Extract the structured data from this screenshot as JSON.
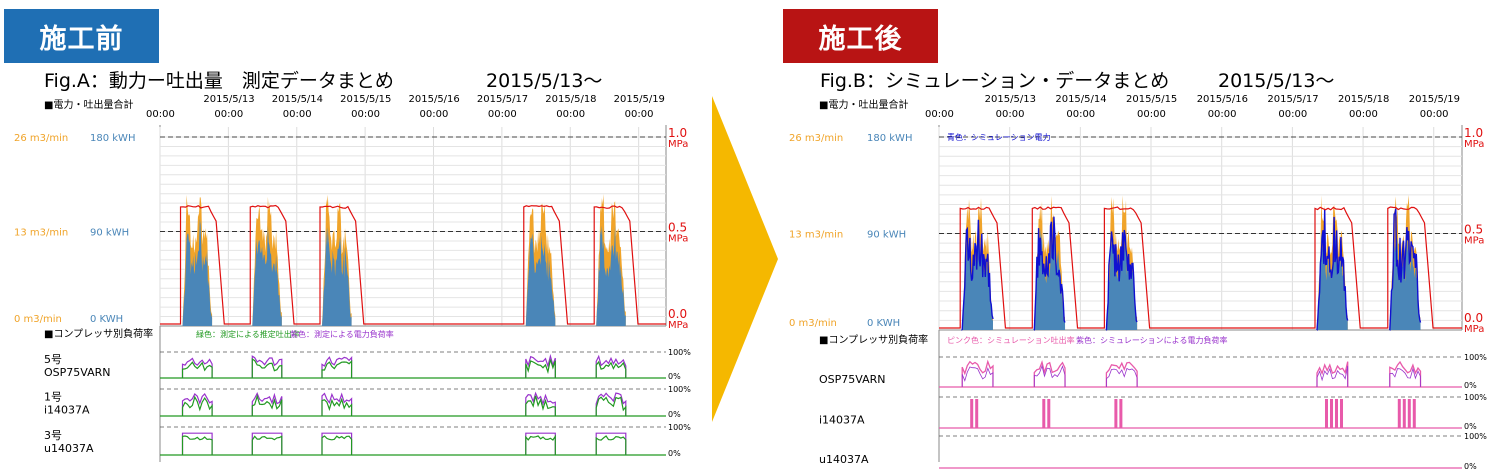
{
  "badges": {
    "before": "施工前",
    "after": "施工後"
  },
  "colors": {
    "badge_before": "#1f6fb4",
    "badge_after": "#b81414",
    "arrow": "#f5b800",
    "flow_orange": "#f0a42a",
    "power_blue": "#4a86b8",
    "pressure_red": "#e01010",
    "sim_blue": "#1010d0",
    "green": "#229922",
    "purple": "#9933cc",
    "pink": "#e85aaa"
  },
  "panels": {
    "before": {
      "fig_title": "Fig.A：動力ー吐出量　測定データまとめ",
      "fig_date": "2015/5/13〜",
      "section_label": "■電力・吐出量合計",
      "date_ticks": [
        "2015/5/13",
        "2015/5/14",
        "2015/5/15",
        "2015/5/16",
        "2015/5/17",
        "2015/5/18",
        "2015/5/19"
      ],
      "time_ticks": [
        "00:00",
        "00:00",
        "00:00",
        "00:00",
        "00:00",
        "00:00",
        "00:00",
        "00:00"
      ],
      "left_flow": [
        "26 m3/min",
        "13 m3/min",
        "0 m3/min"
      ],
      "left_power": [
        "180 kWH",
        "90 kWH",
        "0 KWH"
      ],
      "pressure_vals": [
        "1.0",
        "0.5",
        "0.0"
      ],
      "pressure_unit": "MPa",
      "inner_note": "",
      "comp_header": "■コンプレッサ別負荷率",
      "legend_a": "緑色：測定による推定吐出率",
      "legend_b": "紫色：測定による電力負荷率",
      "comp_names": [
        [
          "5号",
          "OSP75VARN"
        ],
        [
          "1号",
          "i14037A"
        ],
        [
          "3号",
          "u14037A"
        ]
      ],
      "pct_top": "100%",
      "pct_bot": "0%"
    },
    "after": {
      "fig_title": "Fig.B：シミュレーション・データまとめ",
      "fig_date": "2015/5/13〜",
      "section_label": "■電力・吐出量合計",
      "date_ticks": [
        "2015/5/13",
        "2015/5/14",
        "2015/5/15",
        "2015/5/16",
        "2015/5/17",
        "2015/5/18",
        "2015/5/19"
      ],
      "time_ticks": [
        "00:00",
        "00:00",
        "00:00",
        "00:00",
        "00:00",
        "00:00",
        "00:00",
        "00:00"
      ],
      "left_flow": [
        "26 m3/min",
        "13 m3/min",
        "0 m3/min"
      ],
      "left_power": [
        "180 kWH",
        "90 kWH",
        "0 KWH"
      ],
      "pressure_vals": [
        "1.0",
        "0.5",
        "0.0"
      ],
      "pressure_unit": "MPa",
      "inner_note": "青色：シミュレーション電力",
      "comp_header": "■コンプレッサ別負荷率",
      "legend_a": "ピンク色：シミュレーション吐出率",
      "legend_b": "紫色：シミュレーションによる電力負荷率",
      "comp_names": [
        [
          "",
          "OSP75VARN"
        ],
        [
          "",
          "i14037A"
        ],
        [
          "",
          "u14037A"
        ]
      ],
      "pct_top": "100%",
      "pct_bot": "0%"
    }
  },
  "chart_data": [
    {
      "type": "area",
      "title": "Fig.A：動力ー吐出量　測定データまとめ",
      "x": [
        "2015/5/13",
        "2015/5/14",
        "2015/5/15",
        "2015/5/16",
        "2015/5/17",
        "2015/5/18",
        "2015/5/19"
      ],
      "series": [
        {
          "name": "",
          "unit": "MPa",
          "values": [
            0.63,
            0.63,
            0.63,
            0.0,
            0.0,
            0.63,
            0.63
          ]
        },
        {
          "name": "",
          "unit": "m3/min",
          "values": [
            17,
            17,
            17,
            0,
            0,
            17,
            16
          ]
        },
        {
          "name": "",
          "unit": "kWH",
          "values": [
            120,
            115,
            110,
            0,
            0,
            125,
            120
          ]
        }
      ],
      "ylim_flow": [
        0,
        26
      ],
      "ylim_power": [
        0,
        180
      ],
      "ylim_pressure": [
        0.0,
        1.0
      ]
    },
    {
      "type": "area",
      "title": "Fig.B：シミュレーション・データまとめ",
      "x": [
        "2015/5/13",
        "2015/5/14",
        "2015/5/15",
        "2015/5/16",
        "2015/5/17",
        "2015/5/18",
        "2015/5/19"
      ],
      "series": [
        {
          "name": "",
          "unit": "MPa",
          "values": [
            0.63,
            0.63,
            0.63,
            0.0,
            0.0,
            0.63,
            0.63
          ]
        },
        {
          "name": "",
          "unit": "m3/min",
          "values": [
            17,
            17,
            17,
            0,
            0,
            17,
            16
          ]
        },
        {
          "name": "青色：シミュレーション電力",
          "unit": "kWH",
          "values": [
            120,
            115,
            110,
            0,
            0,
            125,
            120
          ]
        }
      ],
      "ylim_flow": [
        0,
        26
      ],
      "ylim_power": [
        0,
        180
      ],
      "ylim_pressure": [
        0.0,
        1.0
      ]
    }
  ]
}
